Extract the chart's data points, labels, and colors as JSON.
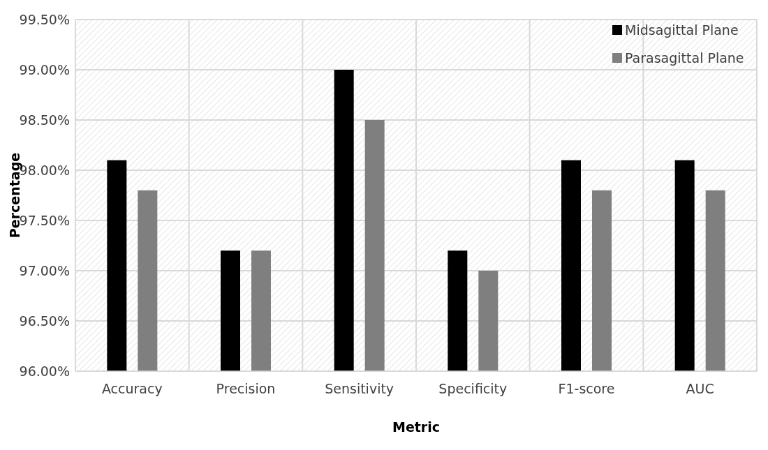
{
  "chart_data": {
    "type": "bar",
    "xlabel": "Metric",
    "ylabel": "Percentage",
    "categories": [
      "Accuracy",
      "Precision",
      "Sensitivity",
      "Specificity",
      "F1-score",
      "AUC"
    ],
    "series": [
      {
        "name": "Midsagittal Plane",
        "color": "#000000",
        "values": [
          98.1,
          97.2,
          99.0,
          97.2,
          98.1,
          98.1
        ]
      },
      {
        "name": "Parasagittal Plane",
        "color": "#7f7f7f",
        "values": [
          97.8,
          97.2,
          98.5,
          97.0,
          97.8,
          97.8
        ]
      }
    ],
    "ylim": [
      96,
      99.5
    ],
    "yticks": [
      {
        "value": 96,
        "label": "96.00%"
      },
      {
        "value": 96.5,
        "label": "96.50%"
      },
      {
        "value": 97,
        "label": "97.00%"
      },
      {
        "value": 97.5,
        "label": "97.50%"
      },
      {
        "value": 98,
        "label": "98.00%"
      },
      {
        "value": 98.5,
        "label": "98.50%"
      },
      {
        "value": 99,
        "label": "99.00%"
      },
      {
        "value": 99.5,
        "label": "99.50%"
      }
    ],
    "grid": true,
    "legend": "top right"
  }
}
